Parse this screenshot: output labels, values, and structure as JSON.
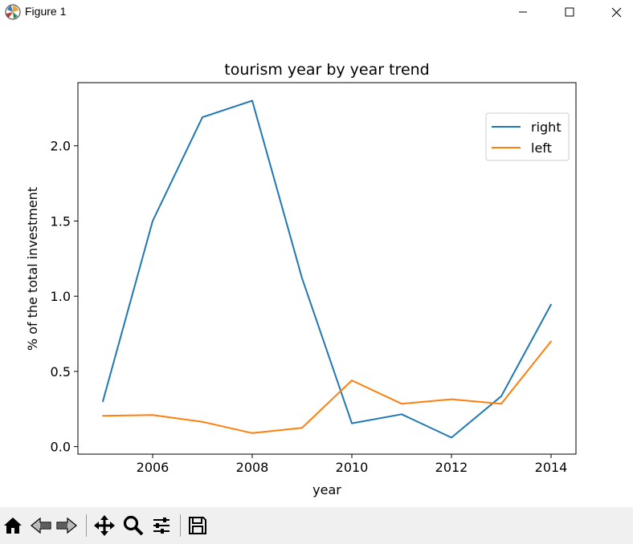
{
  "window": {
    "title": "Figure 1",
    "icons": {
      "app": "matplotlib-icon",
      "minimize": "minimize-icon",
      "maximize": "maximize-icon",
      "close": "close-icon"
    }
  },
  "toolbar": {
    "items": [
      {
        "name": "home-icon"
      },
      {
        "name": "back-arrow-icon"
      },
      {
        "name": "forward-arrow-icon"
      },
      {
        "name": "pan-icon"
      },
      {
        "name": "zoom-icon"
      },
      {
        "name": "configure-subplots-icon"
      },
      {
        "name": "save-icon"
      }
    ]
  },
  "chart_data": {
    "type": "line",
    "title": "tourism year by year trend",
    "xlabel": "year",
    "ylabel": "% of the total investment",
    "x": [
      2005,
      2006,
      2007,
      2008,
      2009,
      2010,
      2011,
      2012,
      2013,
      2014
    ],
    "xlim": [
      2004.5,
      2014.5
    ],
    "ylim": [
      -0.05,
      2.42
    ],
    "xticks": [
      2006,
      2008,
      2010,
      2012,
      2014
    ],
    "yticks": [
      0.0,
      0.5,
      1.0,
      1.5,
      2.0
    ],
    "ytick_labels": [
      "0.0",
      "0.5",
      "1.0",
      "1.5",
      "2.0"
    ],
    "grid": false,
    "legend_position": "top-right",
    "series": [
      {
        "name": "right",
        "color": "#1f77b4",
        "values": [
          0.3,
          1.5,
          2.19,
          2.3,
          1.12,
          0.155,
          0.215,
          0.06,
          0.335,
          0.945
        ]
      },
      {
        "name": "left",
        "color": "#ff7f0e",
        "values": [
          0.205,
          0.21,
          0.165,
          0.09,
          0.125,
          0.44,
          0.285,
          0.315,
          0.285,
          0.7
        ]
      }
    ]
  }
}
